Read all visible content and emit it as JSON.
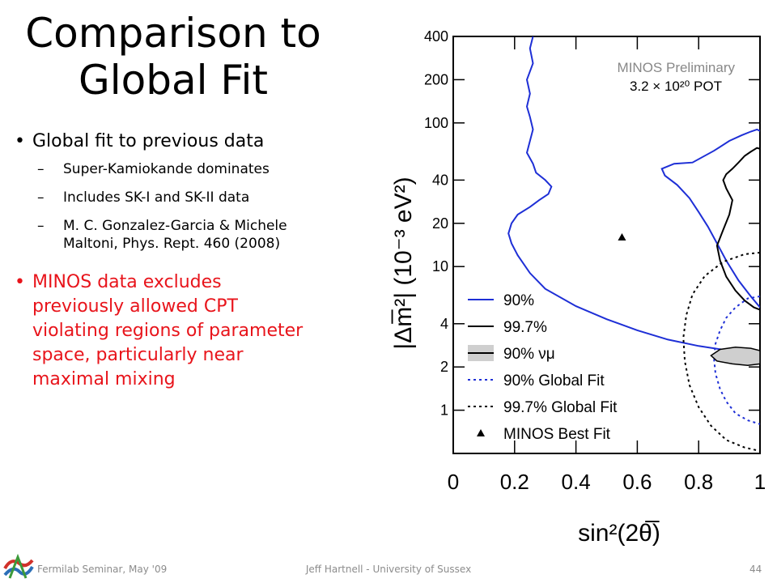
{
  "slide": {
    "title_line1": "Comparison to",
    "title_line2": "Global Fit",
    "bullets": [
      {
        "text": "Global fit to previous data",
        "subs": [
          "Super-Kamiokande dominates",
          "Includes SK-I and SK-II data",
          "M. C. Gonzalez-Garcia & Michele",
          "Maltoni, Phys. Rept. 460 (2008)"
        ]
      },
      {
        "lines": [
          "MINOS data excludes",
          "previously allowed CPT",
          "violating regions of parameter",
          "space, particularly near",
          "maximal mixing"
        ],
        "color": "#e8141b"
      }
    ],
    "footer": {
      "left": "Fermilab Seminar, May '09",
      "center": "Jeff Hartnell - University of Sussex",
      "page": "44"
    }
  },
  "chart_data": {
    "type": "line",
    "x_scale": "linear",
    "y_scale": "log",
    "xlim": [
      0,
      1
    ],
    "ylim": [
      0.5,
      400
    ],
    "xticks": [
      "0",
      "0.2",
      "0.4",
      "0.6",
      "0.8",
      "1"
    ],
    "yticks": [
      "1",
      "2",
      "4",
      "10",
      "20",
      "40",
      "100",
      "200",
      "400"
    ],
    "ytick_values": [
      1,
      2,
      4,
      10,
      20,
      40,
      100,
      200,
      400
    ],
    "xticks_values": [
      0,
      0.2,
      0.4,
      0.6,
      0.8,
      1
    ],
    "xlabel": "sin²(2θ̅)",
    "ylabel": "|Δm̅²| (10⁻³ eV²)",
    "annotation_line1": "MINOS Preliminary",
    "annotation_line2": "3.2 × 10²⁰ POT",
    "legend": [
      {
        "label": "90%",
        "color": "#1e2fd6",
        "style": "solid"
      },
      {
        "label": "99.7%",
        "color": "#000000",
        "style": "solid"
      },
      {
        "label": "90% νμ",
        "color": "#000000",
        "style": "filled"
      },
      {
        "label": "90% Global Fit",
        "color": "#1e2fd6",
        "style": "dotted"
      },
      {
        "label": "99.7% Global Fit",
        "color": "#000000",
        "style": "dotted"
      },
      {
        "label": "MINOS Best Fit",
        "color": "#000000",
        "style": "marker"
      }
    ],
    "best_fit": {
      "x": 0.55,
      "y": 16
    },
    "series": [
      {
        "name": "90%",
        "color": "#1e2fd6",
        "style": "solid",
        "x": [
          0.26,
          0.25,
          0.26,
          0.24,
          0.25,
          0.24,
          0.25,
          0.26,
          0.25,
          0.24,
          0.26,
          0.27,
          0.3,
          0.32,
          0.31,
          0.28,
          0.25,
          0.21,
          0.19,
          0.18,
          0.19,
          0.21,
          0.25,
          0.3,
          0.4,
          0.5,
          0.6,
          0.7,
          0.8,
          0.9,
          1.0
        ],
        "y": [
          400,
          330,
          260,
          200,
          160,
          130,
          110,
          90,
          75,
          62,
          52,
          45,
          40,
          36,
          32,
          29,
          26,
          23,
          20,
          17,
          14.5,
          12,
          9,
          7,
          5.3,
          4.3,
          3.6,
          3.1,
          2.8,
          2.6,
          2.5
        ]
      },
      {
        "name": "90% outer region",
        "color": "#1e2fd6",
        "style": "solid",
        "x": [
          1.0,
          0.99,
          0.97,
          0.94,
          0.9,
          0.85,
          0.78,
          0.72,
          0.68,
          0.69,
          0.73,
          0.77,
          0.8,
          0.83,
          0.86,
          0.89,
          0.93,
          0.97,
          1.0
        ],
        "y": [
          88,
          90,
          87,
          82,
          75,
          64,
          53,
          52,
          48,
          43,
          37,
          30,
          24,
          19,
          14.5,
          11,
          8,
          6.2,
          5.2
        ]
      },
      {
        "name": "99.7%",
        "color": "#000000",
        "style": "solid",
        "x": [
          1.0,
          0.99,
          0.97,
          0.95,
          0.93,
          0.91,
          0.89,
          0.88,
          0.89,
          0.91,
          0.9,
          0.88,
          0.86,
          0.87,
          0.89,
          0.92,
          0.95,
          0.98,
          1.0
        ],
        "y": [
          66,
          67,
          63,
          59,
          53,
          48,
          44,
          40,
          35,
          29,
          23,
          18,
          14,
          11,
          8.5,
          6.8,
          5.8,
          5.2,
          5.0
        ]
      },
      {
        "name": "90% Global Fit",
        "color": "#1e2fd6",
        "style": "dotted",
        "x": [
          1.0,
          0.96,
          0.92,
          0.89,
          0.87,
          0.855,
          0.85,
          0.855,
          0.87,
          0.89,
          0.92,
          0.96,
          1.0
        ],
        "y": [
          6.2,
          6.0,
          5.2,
          4.4,
          3.6,
          2.9,
          2.3,
          1.8,
          1.4,
          1.15,
          0.95,
          0.85,
          0.8
        ]
      },
      {
        "name": "99.7% Global Fit",
        "color": "#000000",
        "style": "dotted",
        "x": [
          1.0,
          0.95,
          0.88,
          0.82,
          0.78,
          0.76,
          0.75,
          0.755,
          0.77,
          0.8,
          0.84,
          0.89,
          0.95,
          1.0
        ],
        "y": [
          12.5,
          12.2,
          10.8,
          8.6,
          6.4,
          4.6,
          3.2,
          2.2,
          1.5,
          1.05,
          0.78,
          0.62,
          0.55,
          0.52
        ]
      },
      {
        "name": "90% νμ",
        "color": "#000000",
        "style": "filled",
        "x": [
          0.84,
          0.87,
          0.92,
          0.97,
          1.0,
          1.0,
          0.96,
          0.91,
          0.86,
          0.84
        ],
        "y": [
          2.4,
          2.65,
          2.75,
          2.7,
          2.6,
          2.1,
          2.05,
          2.1,
          2.2,
          2.4
        ]
      }
    ]
  }
}
